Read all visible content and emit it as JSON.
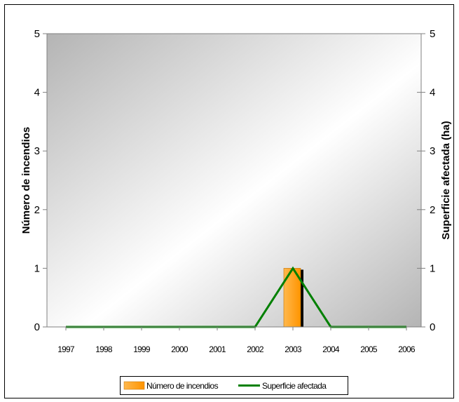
{
  "chart_data": {
    "type": "bar",
    "categories": [
      "1997",
      "1998",
      "1999",
      "2000",
      "2001",
      "2002",
      "2003",
      "2004",
      "2005",
      "2006"
    ],
    "series": [
      {
        "name": "Número de incendios",
        "kind": "bar",
        "axis": "left",
        "color": "#FF9900",
        "values": [
          0,
          0,
          0,
          0,
          0,
          0,
          1,
          0,
          0,
          0
        ]
      },
      {
        "name": "Superficie afectada",
        "kind": "line",
        "axis": "right",
        "color": "#008000",
        "values": [
          0,
          0,
          0,
          0,
          0,
          0,
          1,
          0,
          0,
          0
        ]
      }
    ],
    "ylabel": "Número de incendios",
    "y2label": "Superficie afectada (ha)",
    "ylim": [
      0,
      5
    ],
    "y2lim": [
      0,
      5
    ],
    "yticks": [
      "0",
      "1",
      "2",
      "3",
      "4",
      "5"
    ],
    "y2ticks": [
      "0",
      "1",
      "2",
      "3",
      "4",
      "5"
    ],
    "legend_position": "bottom",
    "grid": false,
    "plot_background": "gray-gradient"
  }
}
